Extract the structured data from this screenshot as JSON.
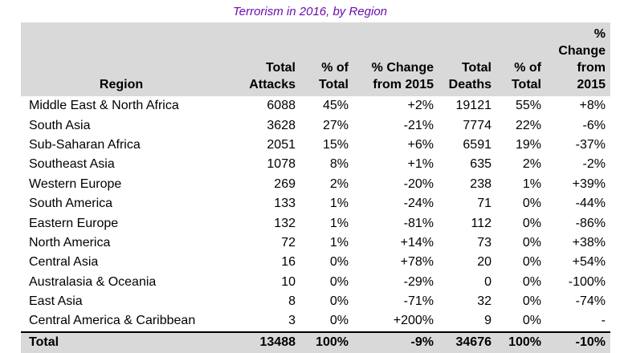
{
  "chart_data": {
    "type": "table",
    "title": "Terrorism in 2016, by Region",
    "columns": [
      "Region",
      "Total Attacks",
      "% of Total",
      "% Change from 2015",
      "Total Deaths",
      "% of Total",
      "% Change from 2015"
    ],
    "header_lines": [
      [
        "",
        "Region"
      ],
      [
        "Total",
        "Attacks"
      ],
      [
        "% of",
        "Total"
      ],
      [
        "% Change",
        "from 2015"
      ],
      [
        "Total",
        "Deaths"
      ],
      [
        "% of",
        "Total"
      ],
      [
        "% Change",
        "from 2015"
      ]
    ],
    "rows": [
      [
        "Middle East & North Africa",
        "6088",
        "45%",
        "+2%",
        "19121",
        "55%",
        "+8%"
      ],
      [
        "South Asia",
        "3628",
        "27%",
        "-21%",
        "7774",
        "22%",
        "-6%"
      ],
      [
        "Sub-Saharan Africa",
        "2051",
        "15%",
        "+6%",
        "6591",
        "19%",
        "-37%"
      ],
      [
        "Southeast Asia",
        "1078",
        "8%",
        "+1%",
        "635",
        "2%",
        "-2%"
      ],
      [
        "Western Europe",
        "269",
        "2%",
        "-20%",
        "238",
        "1%",
        "+39%"
      ],
      [
        "South America",
        "133",
        "1%",
        "-24%",
        "71",
        "0%",
        "-44%"
      ],
      [
        "Eastern Europe",
        "132",
        "1%",
        "-81%",
        "112",
        "0%",
        "-86%"
      ],
      [
        "North America",
        "72",
        "1%",
        "+14%",
        "73",
        "0%",
        "+38%"
      ],
      [
        "Central Asia",
        "16",
        "0%",
        "+78%",
        "20",
        "0%",
        "+54%"
      ],
      [
        "Australasia & Oceania",
        "10",
        "0%",
        "-29%",
        "0",
        "0%",
        "-100%"
      ],
      [
        "East Asia",
        "8",
        "0%",
        "-71%",
        "32",
        "0%",
        "-74%"
      ],
      [
        "Central America & Caribbean",
        "3",
        "0%",
        "+200%",
        "9",
        "0%",
        "-"
      ]
    ],
    "total": [
      "Total",
      "13488",
      "100%",
      "-9%",
      "34676",
      "100%",
      "-10%"
    ]
  },
  "style": {
    "title_color": "#6a0dad",
    "header_background": "#d9d9d9"
  }
}
